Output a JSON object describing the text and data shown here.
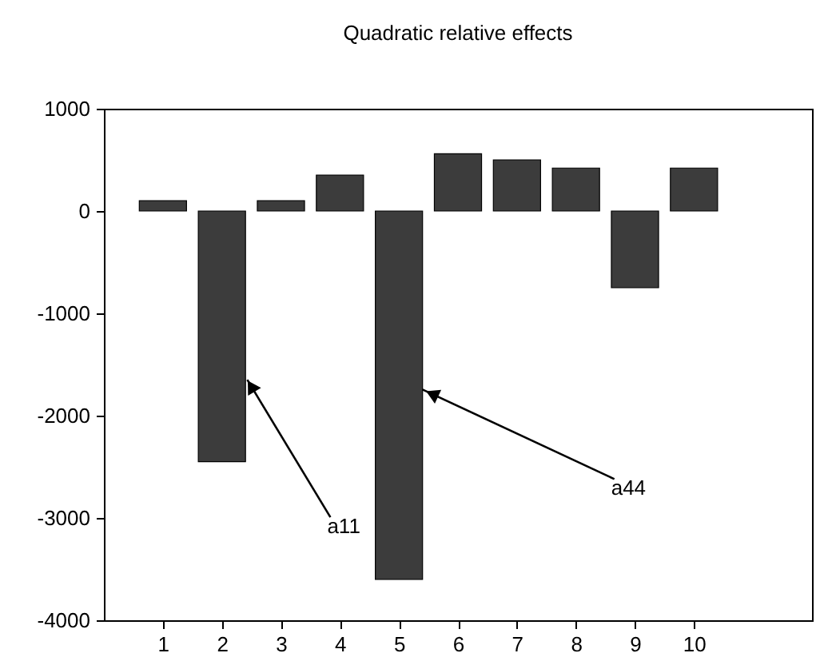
{
  "chart_data": {
    "type": "bar",
    "title": "Quadratic relative effects",
    "x": [
      1,
      2,
      3,
      4,
      5,
      6,
      7,
      8,
      9,
      10
    ],
    "values": [
      100,
      -2450,
      100,
      350,
      -3600,
      560,
      500,
      420,
      -750,
      420
    ],
    "color": "#3c3c3c",
    "xlim": [
      0,
      12
    ],
    "xticks": [
      1,
      2,
      3,
      4,
      5,
      6,
      7,
      8,
      9,
      10
    ],
    "ylim": [
      -4000,
      1000
    ],
    "yticks": [
      -4000,
      -3000,
      -2000,
      -1000,
      0,
      1000
    ],
    "grid": false,
    "annotations": [
      {
        "text": "a11",
        "x": 2.43,
        "y": -1650
      },
      {
        "text": "a44",
        "x": 5.4,
        "y": -1745
      }
    ]
  }
}
